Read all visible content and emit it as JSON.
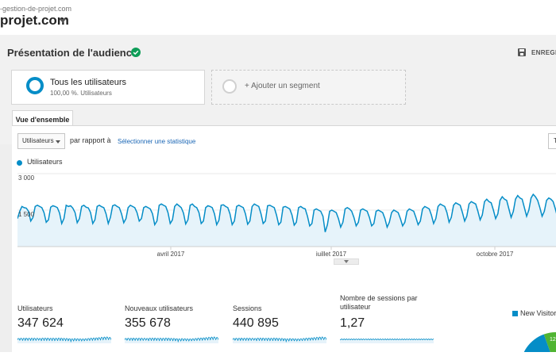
{
  "site": {
    "url": "-gestion-de-projet.com",
    "name": "projet.com"
  },
  "report": {
    "title": "Présentation de l'audience",
    "save_label": "ENREGIS"
  },
  "segment": {
    "name": "Tous les utilisateurs",
    "sub": "100,00 %. Utilisateurs"
  },
  "add_segment": {
    "label": "+ Ajouter un segment"
  },
  "tab": {
    "label": "Vue d'ensemble"
  },
  "controls": {
    "metric_selected": "Utilisateurs",
    "compare_label": "par rapport à",
    "select_link": "Sélectionner une statistique",
    "right_btn": "T"
  },
  "legend": {
    "series": "Utilisateurs"
  },
  "colors": {
    "accent": "#058dc7",
    "fill": "#e6f3fa",
    "verified": "#0f9d58",
    "pie_green": "#50b432"
  },
  "icons": {
    "verified": "check-circle-icon",
    "save": "floppy-disk-icon"
  },
  "chart_data": {
    "type": "area",
    "series": [
      {
        "name": "Utilisateurs",
        "values": [
          1150,
          1450,
          1650,
          1600,
          1580,
          1450,
          1050,
          1200,
          1650,
          1700,
          1650,
          1600,
          1400,
          1000,
          1100,
          1620,
          1680,
          1650,
          1600,
          1380,
          950,
          1150,
          1700,
          1650,
          1680,
          1580,
          1400,
          980,
          1150,
          1650,
          1700,
          1620,
          1590,
          1400,
          950,
          1100,
          1650,
          1700,
          1640,
          1600,
          1350,
          950,
          1200,
          1680,
          1720,
          1650,
          1600,
          1350,
          980,
          1150,
          1600,
          1700,
          1650,
          1600,
          1400,
          1050,
          1150,
          1600,
          1650,
          1600,
          1550,
          1350,
          900,
          1050,
          1700,
          1750,
          1700,
          1650,
          1400,
          950,
          1100,
          1650,
          1750,
          1680,
          1600,
          1380,
          930,
          1100,
          1700,
          1750,
          1650,
          1600,
          1400,
          950,
          1050,
          1600,
          1680,
          1650,
          1600,
          1350,
          900,
          1080,
          1700,
          1720,
          1650,
          1600,
          1350,
          900,
          1050,
          1650,
          1700,
          1650,
          1600,
          1350,
          920,
          1050,
          1650,
          1750,
          1700,
          1650,
          1350,
          950,
          1050,
          1680,
          1700,
          1650,
          1600,
          1300,
          900,
          1000,
          1620,
          1650,
          1600,
          1550,
          1300,
          880,
          1000,
          1600,
          1650,
          1580,
          1550,
          1250,
          850,
          950,
          1500,
          1550,
          1500,
          1450,
          1250,
          600,
          900,
          1450,
          1500,
          1450,
          1400,
          1150,
          800,
          1000,
          1550,
          1600,
          1550,
          1450,
          1200,
          850,
          1000,
          1500,
          1550,
          1500,
          1450,
          1200,
          850,
          950,
          1450,
          1500,
          1450,
          1400,
          1150,
          800,
          1000,
          1400,
          1500,
          1450,
          1400,
          1150,
          850,
          1000,
          1450,
          1550,
          1500,
          1450,
          1200,
          900,
          1050,
          1550,
          1650,
          1600,
          1550,
          1300,
          950,
          1150,
          1650,
          1750,
          1700,
          1650,
          1400,
          1000,
          1200,
          1700,
          1800,
          1750,
          1700,
          1400,
          1050,
          1250,
          1750,
          1850,
          1800,
          1750,
          1450,
          1100,
          1300,
          1850,
          1950,
          1850,
          1800,
          1500,
          1150,
          1350,
          1900,
          2050,
          1950,
          1900,
          1550,
          1200,
          1450,
          1950,
          2100,
          2000,
          1950,
          1600,
          1250,
          1500,
          2000,
          2150,
          2050,
          1900,
          1600,
          1250,
          1450,
          1900,
          2000,
          1950,
          1850,
          1550,
          1200
        ]
      }
    ],
    "x_tick_labels": [
      "avril 2017",
      "juillet 2017",
      "octobre 2017"
    ],
    "y_tick_labels": [
      "3 000",
      "1 500"
    ],
    "ylim": [
      0,
      3000
    ],
    "grid": true,
    "legend": "top-left"
  },
  "metrics": [
    {
      "label": "Utilisateurs",
      "value": "347 624"
    },
    {
      "label": "Nouveaux utilisateurs",
      "value": "355 678"
    },
    {
      "label": "Sessions",
      "value": "440 895"
    },
    {
      "label": "Nombre de sessions par utilisateur",
      "value": "1,27"
    }
  ],
  "pie": {
    "legend": "New Visitor",
    "visible_label": "12"
  }
}
